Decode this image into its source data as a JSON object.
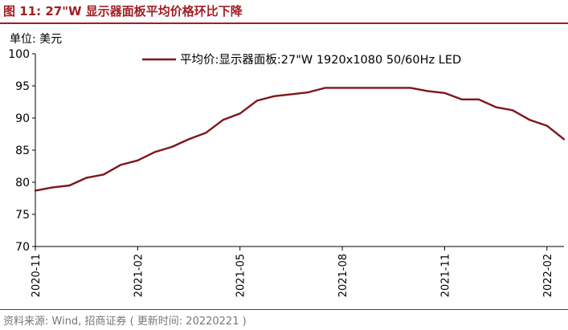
{
  "header": {
    "title": "图 11:  27\"W 显示器面板平均价格环比下降",
    "unit": "单位:  美元"
  },
  "footer": {
    "source": "资料来源: Wind, 招商证券 ( 更新时间: 20220221 )"
  },
  "colors": {
    "accent": "#a01f24",
    "line": "#7f1518",
    "axis": "#000000"
  },
  "chart_data": {
    "type": "line",
    "title": "",
    "xlabel": "",
    "ylabel": "美元",
    "ylim": [
      70,
      100
    ],
    "yticks": [
      70,
      75,
      80,
      85,
      90,
      95,
      100
    ],
    "xtick_labels": [
      "2020-11",
      "2021-02",
      "2021-05",
      "2021-08",
      "2021-11",
      "2022-02"
    ],
    "xtick_index": [
      0,
      3,
      6,
      9,
      12,
      15
    ],
    "legend_position": "top-right",
    "series": [
      {
        "name": "平均价:显示器面板:27\"W 1920x1080 50/60Hz LED",
        "x": [
          0,
          0.5,
          1,
          1.5,
          2,
          2.5,
          3,
          3.5,
          4,
          4.5,
          5,
          5.5,
          6,
          6.5,
          7,
          7.5,
          8,
          8.5,
          9,
          9.5,
          10,
          10.5,
          11,
          11.5,
          12,
          12.5,
          13,
          13.5,
          14,
          14.5,
          15,
          15.5
        ],
        "values": [
          78.7,
          79.2,
          79.5,
          80.7,
          81.2,
          82.7,
          83.4,
          84.7,
          85.5,
          86.7,
          87.7,
          89.7,
          90.7,
          92.7,
          93.4,
          93.7,
          94.0,
          94.7,
          94.7,
          94.7,
          94.7,
          94.7,
          94.7,
          94.2,
          93.9,
          92.9,
          92.9,
          91.7,
          91.2,
          89.7,
          88.8,
          86.7
        ]
      }
    ]
  }
}
